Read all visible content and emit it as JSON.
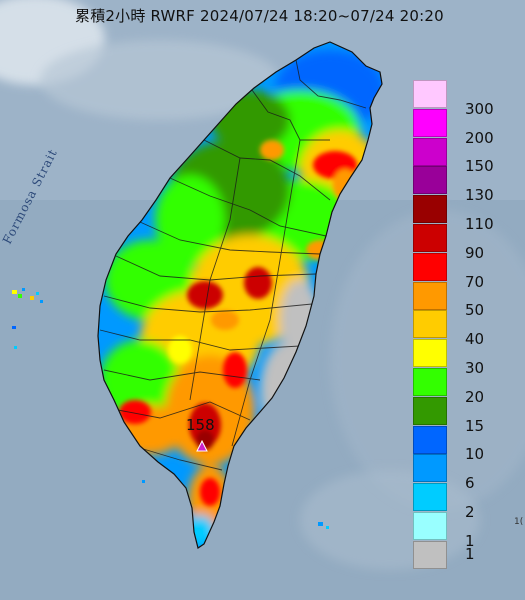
{
  "title": "累積2小時 RWRF 2024/07/24 18:20~07/24 20:20",
  "sea_label": "Formosa Strait",
  "max_marker": {
    "value": "158",
    "icon": "triangle-marker-icon",
    "color": "#cc22cc"
  },
  "edge_text": "1(",
  "legend": {
    "items": [
      {
        "label": "300",
        "color": "#ffc8ff"
      },
      {
        "label": "200",
        "color": "#ff00ff"
      },
      {
        "label": "150",
        "color": "#cc00cc"
      },
      {
        "label": "130",
        "color": "#990099"
      },
      {
        "label": "110",
        "color": "#990000"
      },
      {
        "label": "90",
        "color": "#cc0000"
      },
      {
        "label": "70",
        "color": "#ff0000"
      },
      {
        "label": "50",
        "color": "#ff9900"
      },
      {
        "label": "40",
        "color": "#ffcc00"
      },
      {
        "label": "30",
        "color": "#ffff00"
      },
      {
        "label": "20",
        "color": "#33ff00"
      },
      {
        "label": "15",
        "color": "#339900"
      },
      {
        "label": "10",
        "color": "#0066ff"
      },
      {
        "label": "6",
        "color": "#0099ff"
      },
      {
        "label": "2",
        "color": "#00ccff"
      },
      {
        "label": "1",
        "color": "#99ffff"
      },
      {
        "label": "",
        "color": "#c0c0c0"
      }
    ]
  }
}
